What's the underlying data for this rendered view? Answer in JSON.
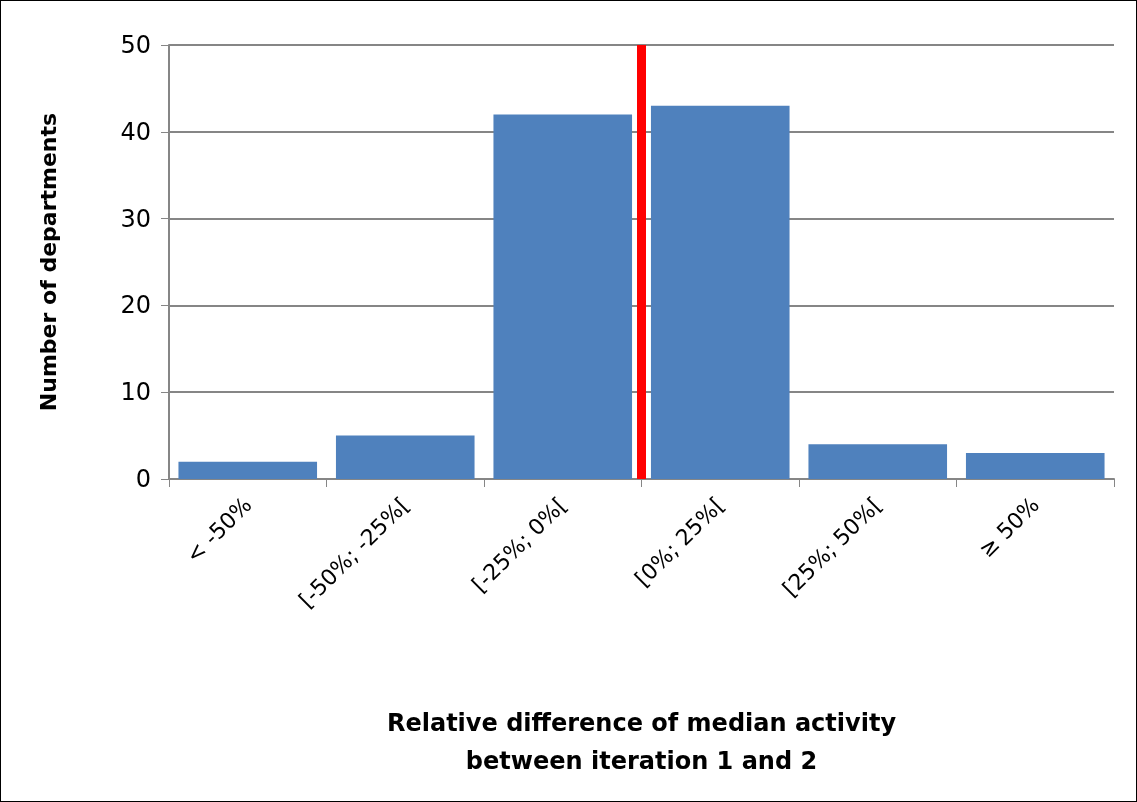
{
  "chart_data": {
    "type": "bar",
    "categories": [
      "< -50%",
      "[-50%; -25%[",
      "[-25%; 0%[",
      "[0%; 25%[",
      "[25%; 50%[",
      "≥ 50%"
    ],
    "values": [
      2,
      5,
      42,
      43,
      4,
      3
    ],
    "color": "#4f81bd",
    "xlabel": "Relative difference of median activity\nbetween iteration 1 and 2",
    "ylabel": "Number of departments",
    "ylim": [
      0,
      50
    ],
    "yticks": [
      0,
      10,
      20,
      30,
      40,
      50
    ],
    "grid": "y",
    "ref_lines": [
      {
        "axis": "x",
        "value": "[0%; 25%[",
        "color": "#ff0000"
      }
    ]
  }
}
